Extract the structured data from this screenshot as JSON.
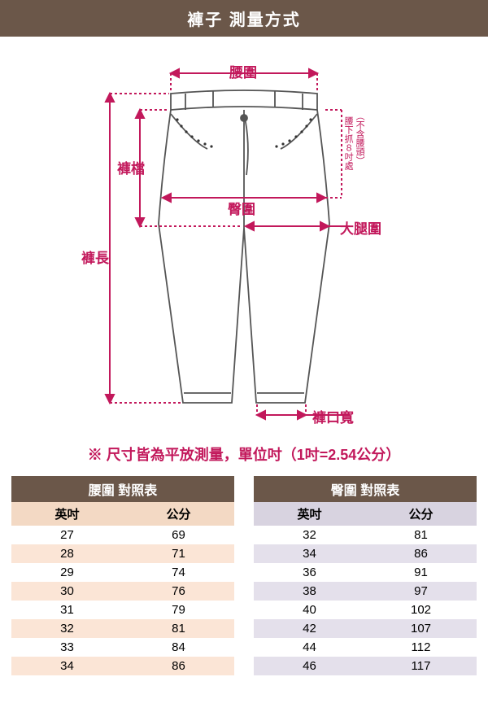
{
  "header": {
    "title": "褲子 測量方式"
  },
  "diagram": {
    "labels": {
      "waist": "腰圍",
      "rise": "褲檔",
      "hip": "臀圍",
      "thigh": "大腿圍",
      "length": "褲長",
      "leg_opening": "褲口寬",
      "side_note_top": "（不含腰頭）",
      "side_note_bottom": "腰下抓８吋處"
    },
    "colors": {
      "measure": "#c2185b",
      "outline": "#555555",
      "arrow": "#c2185b"
    }
  },
  "note": "※ 尺寸皆為平放測量，單位吋（1吋=2.54公分）",
  "tables": {
    "waist": {
      "title": "腰圍 對照表",
      "columns": [
        "英吋",
        "公分"
      ],
      "rows": [
        [
          "27",
          "69"
        ],
        [
          "28",
          "71"
        ],
        [
          "29",
          "74"
        ],
        [
          "30",
          "76"
        ],
        [
          "31",
          "79"
        ],
        [
          "32",
          "81"
        ],
        [
          "33",
          "84"
        ],
        [
          "34",
          "86"
        ]
      ]
    },
    "hip": {
      "title": "臀圍 對照表",
      "columns": [
        "英吋",
        "公分"
      ],
      "rows": [
        [
          "32",
          "81"
        ],
        [
          "34",
          "86"
        ],
        [
          "36",
          "91"
        ],
        [
          "38",
          "97"
        ],
        [
          "40",
          "102"
        ],
        [
          "42",
          "107"
        ],
        [
          "44",
          "112"
        ],
        [
          "46",
          "117"
        ]
      ]
    }
  }
}
